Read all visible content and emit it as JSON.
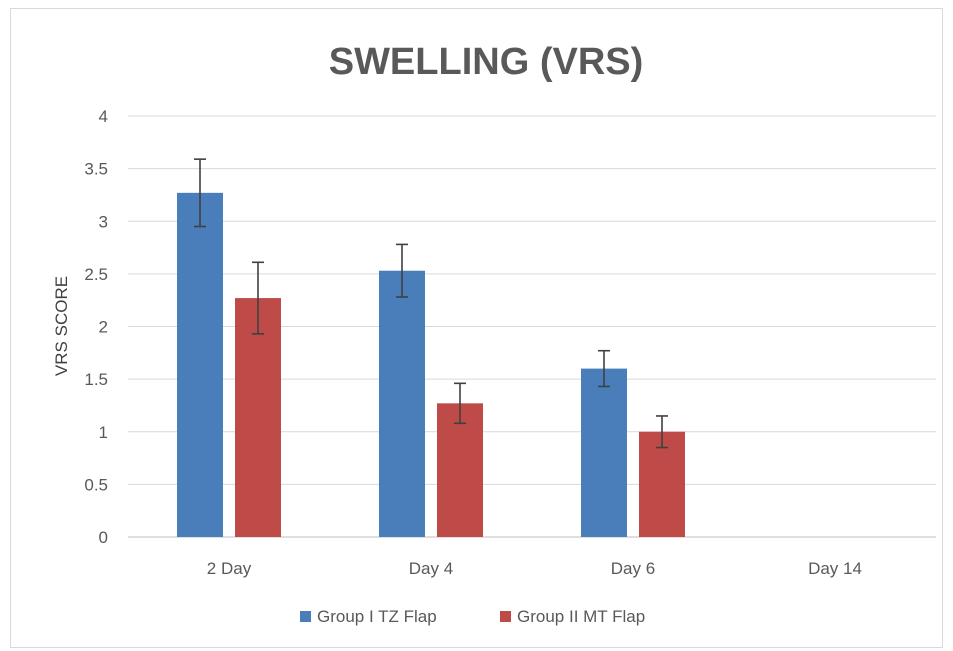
{
  "chart_data": {
    "type": "bar",
    "title": "SWELLING (VRS)",
    "ylabel": "VRS SCORE",
    "xlabel": "",
    "categories": [
      "2 Day",
      "Day 4",
      "Day 6",
      "Day 14"
    ],
    "ylim": [
      0,
      4
    ],
    "yticks": [
      "0",
      "0.5",
      "1",
      "1.5",
      "2",
      "2.5",
      "3",
      "3.5",
      "4"
    ],
    "grid": true,
    "legend_position": "bottom",
    "series": [
      {
        "name": "Group I TZ Flap",
        "color": "#4a7ebb",
        "values": [
          3.27,
          2.53,
          1.6,
          null
        ],
        "errors": [
          0.32,
          0.25,
          0.17,
          null
        ]
      },
      {
        "name": "Group II MT Flap",
        "color": "#be4b48",
        "values": [
          2.27,
          1.27,
          1.0,
          null
        ],
        "errors": [
          0.34,
          0.19,
          0.15,
          null
        ]
      }
    ]
  }
}
